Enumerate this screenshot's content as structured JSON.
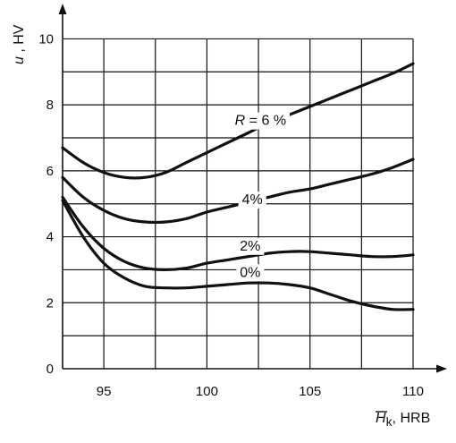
{
  "chart_data": {
    "type": "line",
    "title": "",
    "xlabel": {
      "symbol": "H",
      "subscript": "k",
      "unit": ", HRB"
    },
    "ylabel": {
      "symbol": "u",
      "unit": " , HV"
    },
    "xlim": [
      93,
      110
    ],
    "ylim": [
      0,
      10.5
    ],
    "xticks": [
      95,
      100,
      105,
      110
    ],
    "yticks": [
      0,
      2,
      4,
      6,
      8,
      10
    ],
    "xgrid_step": 2.5,
    "ygrid_step": 1,
    "grid": true,
    "series": [
      {
        "name": "R = 6 %",
        "label_parts": {
          "symbol": "R",
          "rest": " = 6 %"
        },
        "label_at": [
          102.6,
          7.55
        ],
        "x": [
          93,
          94,
          95,
          96,
          97,
          98,
          99,
          100,
          101,
          102,
          103,
          104,
          105,
          106,
          107,
          108,
          109,
          110
        ],
        "y": [
          6.7,
          6.25,
          5.95,
          5.8,
          5.8,
          5.95,
          6.25,
          6.55,
          6.85,
          7.15,
          7.45,
          7.7,
          7.95,
          8.2,
          8.45,
          8.7,
          8.95,
          9.25
        ]
      },
      {
        "name": "4%",
        "label_parts": {
          "symbol": "",
          "rest": "4%"
        },
        "label_at": [
          102.2,
          5.15
        ],
        "x": [
          93,
          94,
          95,
          96,
          97,
          98,
          99,
          100,
          101,
          102,
          103,
          104,
          105,
          106,
          107,
          108,
          109,
          110
        ],
        "y": [
          5.8,
          5.2,
          4.8,
          4.55,
          4.45,
          4.45,
          4.55,
          4.75,
          4.9,
          5.05,
          5.2,
          5.35,
          5.45,
          5.6,
          5.75,
          5.9,
          6.1,
          6.35
        ]
      },
      {
        "name": "2%",
        "label_parts": {
          "symbol": "",
          "rest": "2%"
        },
        "label_at": [
          102.1,
          3.75
        ],
        "x": [
          93,
          94,
          95,
          96,
          97,
          98,
          99,
          100,
          101,
          102,
          103,
          104,
          105,
          106,
          107,
          108,
          109,
          110
        ],
        "y": [
          5.2,
          4.3,
          3.65,
          3.25,
          3.05,
          3.0,
          3.05,
          3.2,
          3.3,
          3.4,
          3.5,
          3.55,
          3.55,
          3.5,
          3.45,
          3.4,
          3.4,
          3.45
        ]
      },
      {
        "name": "0%",
        "label_parts": {
          "symbol": "",
          "rest": "0%"
        },
        "label_at": [
          102.1,
          2.95
        ],
        "x": [
          93,
          94,
          95,
          96,
          97,
          98,
          99,
          100,
          101,
          102,
          103,
          104,
          105,
          106,
          107,
          108,
          109,
          110
        ],
        "y": [
          5.1,
          4.0,
          3.2,
          2.75,
          2.5,
          2.45,
          2.45,
          2.5,
          2.55,
          2.6,
          2.6,
          2.55,
          2.45,
          2.25,
          2.05,
          1.9,
          1.8,
          1.8
        ]
      }
    ]
  }
}
